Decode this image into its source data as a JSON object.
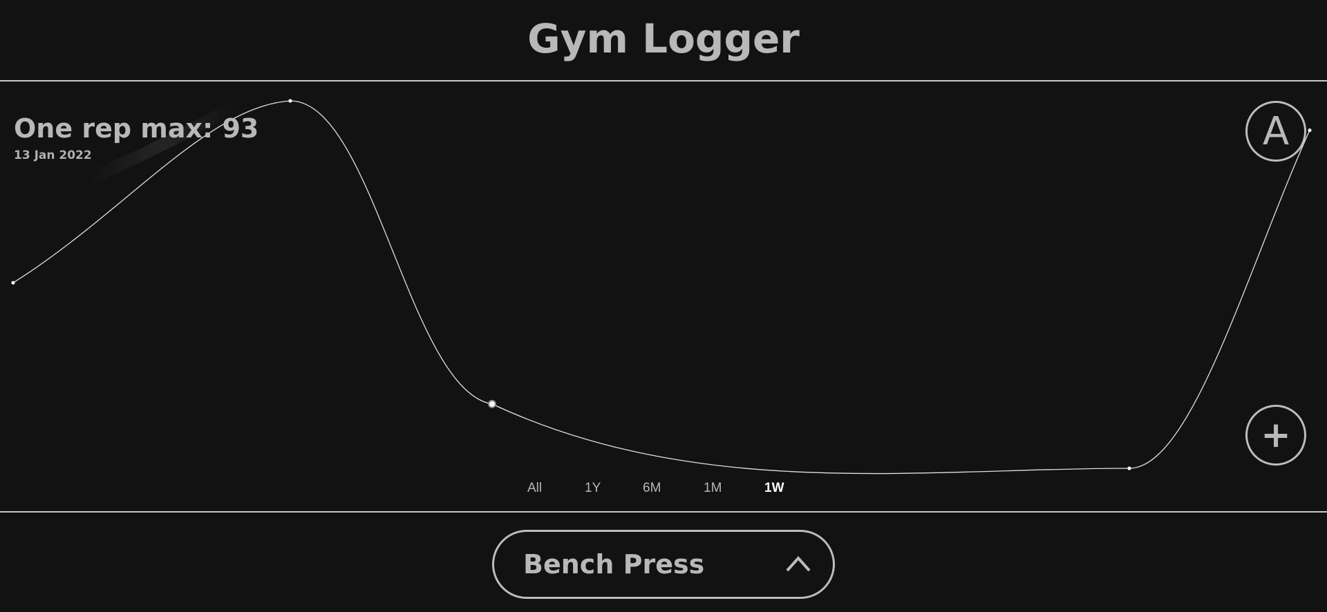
{
  "app": {
    "title": "Gym Logger"
  },
  "readout": {
    "label": "One rep max: 93",
    "date": "13 Jan 2022"
  },
  "buttons": {
    "account_label": "A",
    "add_label": "+"
  },
  "ranges": {
    "options": [
      "All",
      "1Y",
      "6M",
      "1M",
      "1W"
    ],
    "selected": "1W"
  },
  "exercise": {
    "selected": "Bench Press"
  },
  "colors": {
    "background": "#121212",
    "text": "#b8b8b8",
    "line": "#e0e0e0",
    "active_range": "#ffffff"
  },
  "chart_data": {
    "type": "line",
    "series": [
      {
        "values": [
          0.505,
          1.0,
          0.175,
          0.0,
          0.92
        ]
      }
    ],
    "selected_index": 2,
    "grid": false,
    "legend": "none"
  }
}
